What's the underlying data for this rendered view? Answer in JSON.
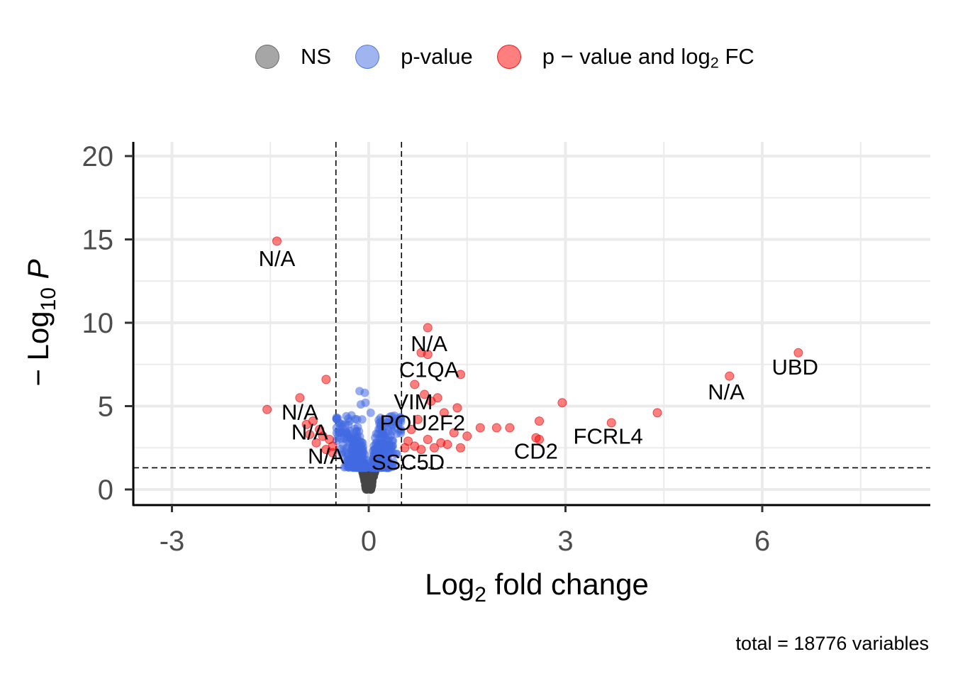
{
  "chart_data": {
    "type": "scatter",
    "title": "",
    "xlabel": "Log2 fold change",
    "ylabel": "-Log10 P",
    "xlim": [
      -3.5,
      8.5
    ],
    "ylim": [
      -1,
      21
    ],
    "x_ticks": [
      -3,
      0,
      3,
      6
    ],
    "y_ticks": [
      0,
      5,
      10,
      15,
      20
    ],
    "grid": true,
    "legend_position": "top",
    "thresholds": {
      "log2fc": 0.5,
      "neg_log10_p": 1.3
    },
    "caption": "total = 18776 variables",
    "legend": {
      "ns": "NS",
      "pvalue": "p-value",
      "both": "p − value and log",
      "both_sub": "2",
      "both_tail": " FC"
    },
    "colors": {
      "NS": "#808080",
      "pvalue": "#4169E1",
      "both": "#FF0000"
    },
    "series": [
      {
        "name": "p − value and log2 FC",
        "points": [
          [
            -1.4,
            14.9
          ],
          [
            0.9,
            9.7
          ],
          [
            6.55,
            8.2
          ],
          [
            0.9,
            8.1
          ],
          [
            0.8,
            8.2
          ],
          [
            5.5,
            6.8
          ],
          [
            1.4,
            6.9
          ],
          [
            -0.65,
            6.6
          ],
          [
            0.7,
            6.3
          ],
          [
            2.95,
            5.2
          ],
          [
            -1.05,
            5.5
          ],
          [
            0.85,
            5.7
          ],
          [
            1.05,
            5.5
          ],
          [
            0.95,
            5.3
          ],
          [
            1.35,
            4.9
          ],
          [
            1.15,
            4.6
          ],
          [
            4.4,
            4.6
          ],
          [
            3.7,
            4.0
          ],
          [
            2.6,
            4.1
          ],
          [
            -1.55,
            4.8
          ],
          [
            -0.85,
            4.1
          ],
          [
            -0.75,
            3.6
          ],
          [
            -0.7,
            3.2
          ],
          [
            1.7,
            3.7
          ],
          [
            1.95,
            3.7
          ],
          [
            2.15,
            3.7
          ],
          [
            1.3,
            3.4
          ],
          [
            1.5,
            3.2
          ],
          [
            2.55,
            3.1
          ],
          [
            2.6,
            3.0
          ],
          [
            1.4,
            2.5
          ],
          [
            1.2,
            2.7
          ],
          [
            1.1,
            2.8
          ],
          [
            0.9,
            3.0
          ],
          [
            0.7,
            2.6
          ],
          [
            0.6,
            2.9
          ],
          [
            0.65,
            3.6
          ],
          [
            0.75,
            4.2
          ],
          [
            0.55,
            2.5
          ],
          [
            -0.55,
            2.6
          ],
          [
            -0.6,
            3.0
          ],
          [
            -0.95,
            3.9
          ],
          [
            -0.9,
            3.3
          ],
          [
            -0.8,
            2.8
          ],
          [
            -0.65,
            2.4
          ],
          [
            -0.55,
            2.2
          ],
          [
            1.0,
            2.5
          ],
          [
            0.8,
            2.4
          ]
        ]
      }
    ],
    "labels": [
      {
        "text": "N/A",
        "x": -1.4,
        "y": 13.4
      },
      {
        "text": "N/A",
        "x": 0.92,
        "y": 8.3
      },
      {
        "text": "C1QA",
        "x": 0.92,
        "y": 6.75
      },
      {
        "text": "UBD",
        "x": 6.5,
        "y": 6.9
      },
      {
        "text": "N/A",
        "x": 5.45,
        "y": 5.4
      },
      {
        "text": "VIM",
        "x": 0.68,
        "y": 4.8
      },
      {
        "text": "N/A",
        "x": -1.05,
        "y": 4.2
      },
      {
        "text": "POU2F2",
        "x": 0.82,
        "y": 3.55
      },
      {
        "text": "N/A",
        "x": -0.9,
        "y": 3.0
      },
      {
        "text": "FCRL4",
        "x": 3.65,
        "y": 2.75
      },
      {
        "text": "CD2",
        "x": 2.55,
        "y": 1.85
      },
      {
        "text": "N/A",
        "x": -0.65,
        "y": 1.55
      },
      {
        "text": "SSC5D",
        "x": 0.6,
        "y": 1.2
      }
    ]
  }
}
